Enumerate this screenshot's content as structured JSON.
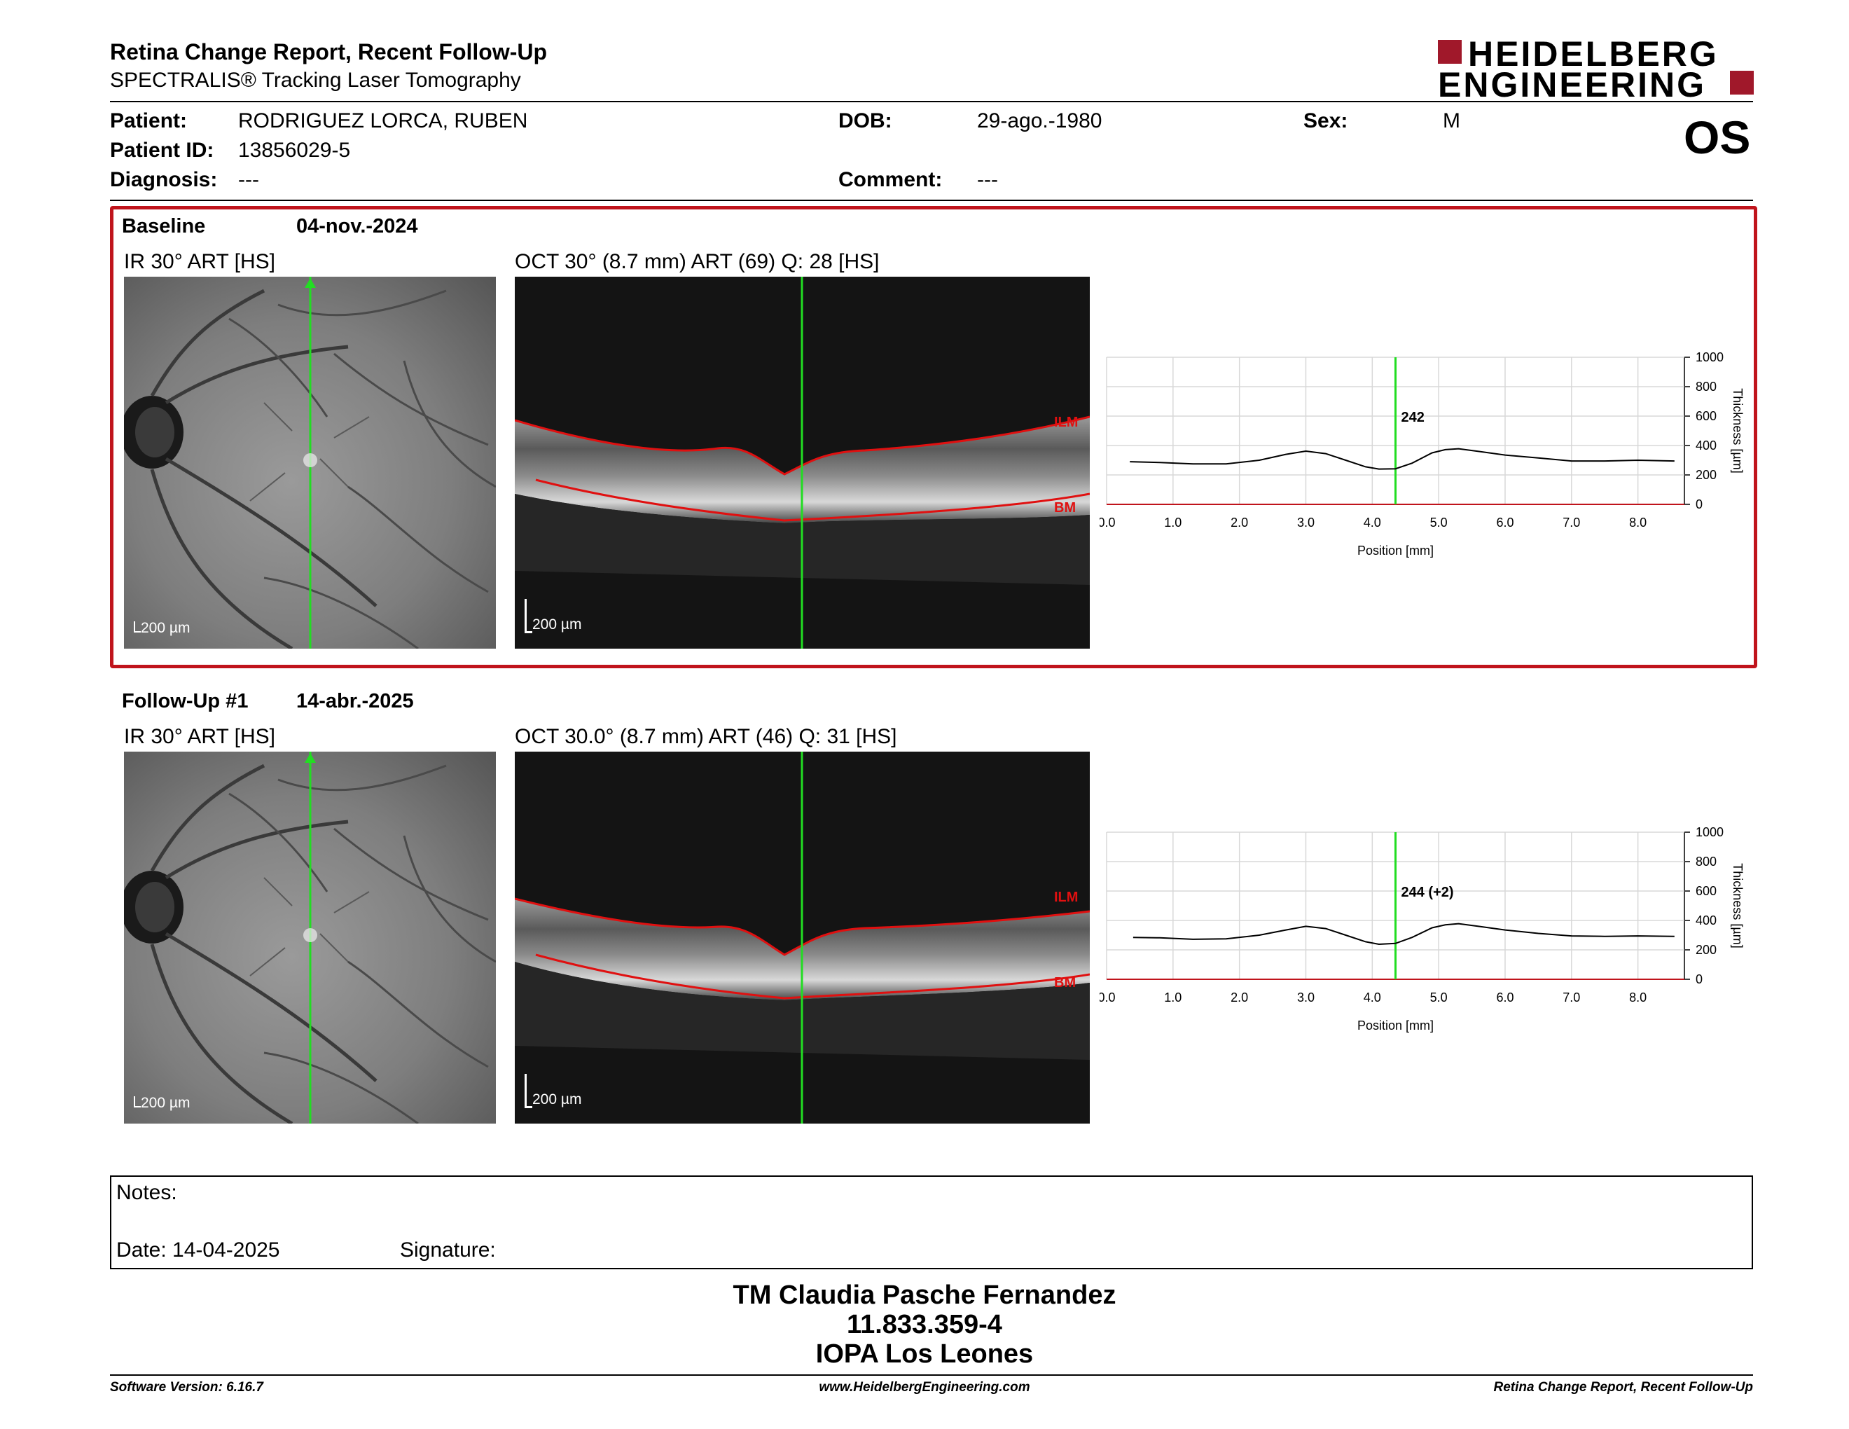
{
  "header": {
    "title": "Retina Change Report, Recent Follow-Up",
    "subtitle": "SPECTRALIS® Tracking Laser Tomography",
    "logo_line1": "HEIDELBERG",
    "logo_line2": "ENGINEERING",
    "eye": "OS"
  },
  "patient": {
    "patient_label": "Patient:",
    "patient_value": "RODRIGUEZ LORCA, RUBEN",
    "id_label": "Patient ID:",
    "id_value": "13856029-5",
    "diagnosis_label": "Diagnosis:",
    "diagnosis_value": "---",
    "dob_label": "DOB:",
    "dob_value": "29-ago.-1980",
    "comment_label": "Comment:",
    "comment_value": "---",
    "sex_label": "Sex:",
    "sex_value": "M"
  },
  "baseline": {
    "label": "Baseline",
    "date": "04-nov.-2024",
    "ir_title": "IR 30° ART [HS]",
    "oct_title": "OCT 30° (8.7 mm) ART (69) Q: 28 [HS]",
    "scale_ir": "200 µm",
    "scale_oct": "200 µm",
    "ilm": "ILM",
    "bm": "BM",
    "marker_value": "242"
  },
  "followup": {
    "label": "Follow-Up #1",
    "date": "14-abr.-2025",
    "ir_title": "IR 30° ART [HS]",
    "oct_title": "OCT 30.0° (8.7 mm) ART (46) Q: 31 [HS]",
    "scale_ir": "200 µm",
    "scale_oct": "200 µm",
    "ilm": "ILM",
    "bm": "BM",
    "marker_value": "244 (+2)"
  },
  "chart_data": [
    {
      "type": "line",
      "xlabel": "Position [mm]",
      "ylabel": "Thickness [µm]",
      "xlim": [
        0,
        8.7
      ],
      "ylim": [
        0,
        1000
      ],
      "x_ticks": [
        "0.0",
        "1.0",
        "2.0",
        "3.0",
        "4.0",
        "5.0",
        "6.0",
        "7.0",
        "8.0"
      ],
      "y_ticks": [
        "0",
        "200",
        "400",
        "600",
        "800",
        "1000"
      ],
      "marker_x": 4.35,
      "marker_label": "242",
      "x": [
        0.35,
        0.8,
        1.3,
        1.8,
        2.3,
        2.7,
        3.0,
        3.3,
        3.6,
        3.9,
        4.1,
        4.35,
        4.6,
        4.9,
        5.1,
        5.3,
        5.6,
        6.0,
        6.5,
        7.0,
        7.5,
        8.0,
        8.55
      ],
      "y": [
        290,
        285,
        275,
        275,
        300,
        340,
        362,
        345,
        300,
        255,
        240,
        242,
        280,
        350,
        372,
        378,
        360,
        335,
        315,
        295,
        295,
        300,
        295
      ]
    },
    {
      "type": "line",
      "xlabel": "Position [mm]",
      "ylabel": "Thickness [µm]",
      "xlim": [
        0,
        8.7
      ],
      "ylim": [
        0,
        1000
      ],
      "x_ticks": [
        "0.0",
        "1.0",
        "2.0",
        "3.0",
        "4.0",
        "5.0",
        "6.0",
        "7.0",
        "8.0"
      ],
      "y_ticks": [
        "0",
        "200",
        "400",
        "600",
        "800",
        "1000"
      ],
      "marker_x": 4.35,
      "marker_label": "244 (+2)",
      "x": [
        0.4,
        0.8,
        1.3,
        1.8,
        2.3,
        2.7,
        3.0,
        3.3,
        3.6,
        3.9,
        4.1,
        4.35,
        4.6,
        4.9,
        5.1,
        5.3,
        5.6,
        6.0,
        6.5,
        7.0,
        7.5,
        8.0,
        8.55
      ],
      "y": [
        285,
        282,
        272,
        275,
        300,
        335,
        360,
        345,
        300,
        255,
        238,
        244,
        285,
        350,
        370,
        378,
        360,
        335,
        312,
        295,
        292,
        295,
        292
      ]
    }
  ],
  "notes": {
    "label": "Notes:",
    "date_label": "Date: 14-04-2025",
    "signature_label": "Signature:"
  },
  "signature": {
    "name": "TM Claudia Pasche Fernandez",
    "id": "11.833.359-4",
    "clinic": "IOPA Los Leones"
  },
  "footer": {
    "left": "Software Version: 6.16.7",
    "center": "www.HeidelbergEngineering.com",
    "right": "Retina Change Report, Recent Follow-Up"
  },
  "colors": {
    "frame": "#c0141c",
    "logo": "#a0182a",
    "marker": "#22dd22",
    "segmentation": "#e01010"
  }
}
